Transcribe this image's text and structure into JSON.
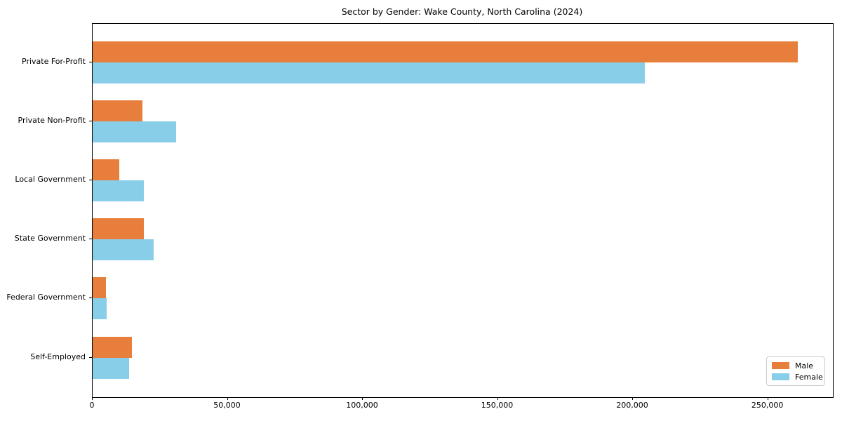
{
  "chart_data": {
    "type": "bar",
    "orientation": "horizontal",
    "title": "Sector by Gender: Wake County, North Carolina (2024)",
    "xlabel": "",
    "ylabel": "",
    "categories": [
      "Private For-Profit",
      "Private Non-Profit",
      "Local Government",
      "State Government",
      "Federal Government",
      "Self-Employed"
    ],
    "series": [
      {
        "name": "Male",
        "color": "#e87e3c",
        "values": [
          261000,
          18500,
          9800,
          19000,
          5000,
          14600
        ]
      },
      {
        "name": "Female",
        "color": "#89cee9",
        "values": [
          204500,
          31000,
          19000,
          22500,
          5200,
          13400
        ]
      }
    ],
    "xlim": [
      0,
      274000
    ],
    "xticks": [
      {
        "value": 0,
        "label": "0"
      },
      {
        "value": 50000,
        "label": "50,000"
      },
      {
        "value": 100000,
        "label": "100,000"
      },
      {
        "value": 150000,
        "label": "150,000"
      },
      {
        "value": 200000,
        "label": "200,000"
      },
      {
        "value": 250000,
        "label": "250,000"
      }
    ],
    "grid": false,
    "legend": {
      "position": "lower right"
    }
  }
}
